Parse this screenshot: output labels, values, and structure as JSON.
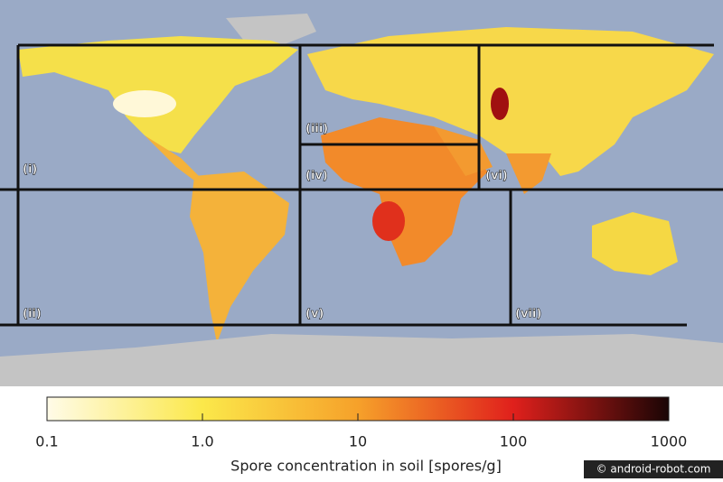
{
  "regions": [
    "(i)",
    "(ii)",
    "(iii)",
    "(iv)",
    "(v)",
    "(vi)",
    "(vii)"
  ],
  "colorbar": {
    "label": "Spore concentration in soil [spores/g]",
    "log": true,
    "lim": [
      0.1,
      1000
    ],
    "ticks": [
      0.1,
      {
        "value": 1,
        "label": "1.0"
      },
      10,
      100,
      1000
    ]
  },
  "watermark": "© android-robot.com"
}
